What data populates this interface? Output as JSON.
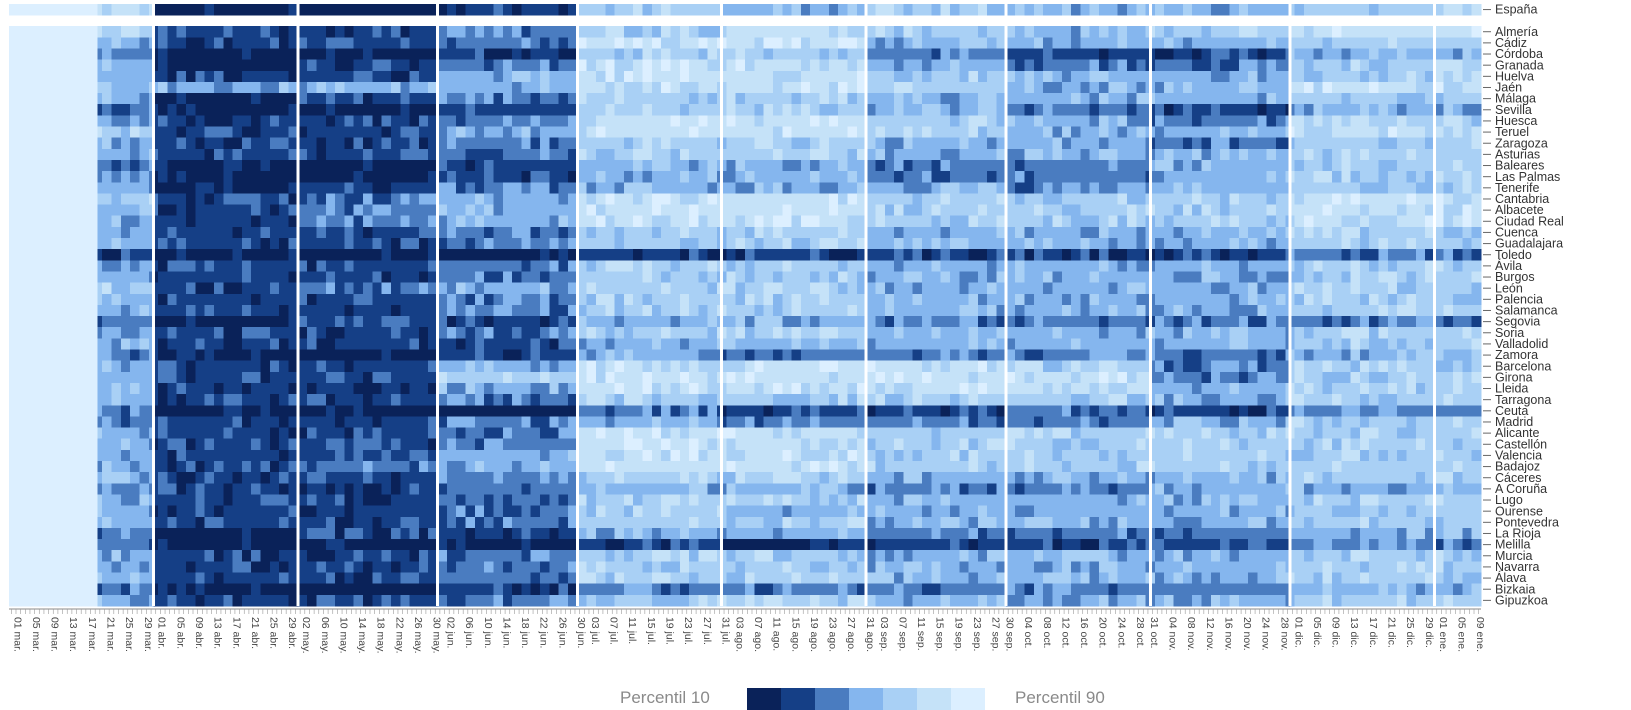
{
  "chart_data": {
    "type": "heatmap",
    "title": "",
    "row_labels": [
      "España",
      "Almería",
      "Cádiz",
      "Córdoba",
      "Granada",
      "Huelva",
      "Jaén",
      "Málaga",
      "Sevilla",
      "Huesca",
      "Teruel",
      "Zaragoza",
      "Asturias",
      "Baleares",
      "Las Palmas",
      "Tenerife",
      "Cantabria",
      "Albacete",
      "Ciudad Real",
      "Cuenca",
      "Guadalajara",
      "Toledo",
      "Ávila",
      "Burgos",
      "León",
      "Palencia",
      "Salamanca",
      "Segovia",
      "Soria",
      "Valladolid",
      "Zamora",
      "Barcelona",
      "Girona",
      "Lleida",
      "Tarragona",
      "Ceuta",
      "Madrid",
      "Alicante",
      "Castellón",
      "Valencia",
      "Badajoz",
      "Cáceres",
      "A Coruña",
      "Lugo",
      "Ourense",
      "Pontevedra",
      "La Rioja",
      "Melilla",
      "Murcia",
      "Navarra",
      "Álava",
      "Bizkaia",
      "Gipuzkoa"
    ],
    "date_start": "2020-03-01",
    "date_end": "2021-01-10",
    "x_tick_labels": [
      "01 mar.",
      "05 mar.",
      "09 mar.",
      "13 mar.",
      "17 mar.",
      "21 mar.",
      "25 mar.",
      "29 mar.",
      "01 abr.",
      "05 abr.",
      "09 abr.",
      "13 abr.",
      "17 abr.",
      "21 abr.",
      "25 abr.",
      "29 abr.",
      "02 may.",
      "06 may.",
      "10 may.",
      "14 may.",
      "18 may.",
      "22 may.",
      "26 may.",
      "30 may.",
      "02 jun.",
      "06 jun.",
      "10 jun.",
      "14 jun.",
      "18 jun.",
      "22 jun.",
      "26 jun.",
      "30 jun.",
      "03 jul.",
      "07 jul.",
      "11 jul.",
      "15 jul.",
      "19 jul.",
      "23 jul.",
      "27 jul.",
      "31 jul.",
      "03 ago.",
      "07 ago.",
      "11 ago.",
      "15 ago.",
      "19 ago.",
      "23 ago.",
      "27 ago.",
      "31 ago.",
      "03 sep.",
      "07 sep.",
      "11 sep.",
      "15 sep.",
      "19 sep.",
      "23 sep.",
      "27 sep.",
      "30 sep.",
      "04 oct.",
      "08 oct.",
      "12 oct.",
      "16 oct.",
      "20 oct.",
      "24 oct.",
      "28 oct.",
      "31 oct.",
      "04 nov.",
      "08 nov.",
      "12 nov.",
      "16 nov.",
      "20 nov.",
      "24 nov.",
      "28 nov.",
      "01 dic.",
      "05 dic.",
      "09 dic.",
      "13 dic.",
      "17 dic.",
      "21 dic.",
      "25 dic.",
      "29 dic.",
      "01 ene.",
      "05 ene.",
      "09 ene."
    ],
    "month_breaks": [
      "01 abr.",
      "02 may.",
      "01 jun.",
      "01 jul.",
      "01 ago.",
      "01 sep.",
      "01 oct.",
      "01 nov.",
      "01 dic.",
      "01 ene."
    ],
    "color_scale": [
      "#0a2259",
      "#153f86",
      "#4a7cc0",
      "#85b6ee",
      "#a9d0f5",
      "#c5e2f8",
      "#dcefff"
    ],
    "legend": {
      "low_label": "Percentil 10",
      "high_label": "Percentil 90",
      "position": "bottom-center"
    },
    "period_levels_note_key": "levels are percentile class indices 0 (darkest, Percentil 10) to 6 (lightest, Percentil 90)",
    "rows": [
      {
        "name": "España",
        "periods": [
          6,
          5,
          0,
          0,
          1,
          4,
          3,
          4,
          3,
          3,
          4
        ]
      },
      {
        "name": "Almería",
        "periods": [
          6,
          4,
          1,
          1,
          2,
          4,
          5,
          4,
          3,
          4,
          5
        ]
      },
      {
        "name": "Cádiz",
        "periods": [
          6,
          3,
          1,
          1,
          2,
          5,
          5,
          3,
          3,
          3,
          4
        ]
      },
      {
        "name": "Córdoba",
        "periods": [
          6,
          2,
          0,
          0,
          1,
          4,
          4,
          2,
          1,
          1,
          3
        ]
      },
      {
        "name": "Granada",
        "periods": [
          6,
          3,
          0,
          1,
          2,
          5,
          5,
          3,
          2,
          2,
          4
        ]
      },
      {
        "name": "Huelva",
        "periods": [
          6,
          3,
          1,
          1,
          3,
          5,
          5,
          4,
          3,
          3,
          4
        ]
      },
      {
        "name": "Jaén",
        "periods": [
          6,
          4,
          3,
          3,
          3,
          5,
          5,
          4,
          3,
          3,
          5
        ]
      },
      {
        "name": "Málaga",
        "periods": [
          6,
          3,
          0,
          1,
          2,
          4,
          4,
          3,
          3,
          3,
          4
        ]
      },
      {
        "name": "Sevilla",
        "periods": [
          6,
          2,
          0,
          0,
          1,
          4,
          4,
          3,
          2,
          1,
          3
        ]
      },
      {
        "name": "Huesca",
        "periods": [
          6,
          3,
          1,
          1,
          2,
          5,
          5,
          4,
          3,
          2,
          4
        ]
      },
      {
        "name": "Teruel",
        "periods": [
          6,
          4,
          1,
          1,
          3,
          5,
          5,
          4,
          3,
          3,
          5
        ]
      },
      {
        "name": "Zaragoza",
        "periods": [
          6,
          3,
          1,
          1,
          2,
          4,
          4,
          3,
          3,
          2,
          4
        ]
      },
      {
        "name": "Asturias",
        "periods": [
          6,
          3,
          1,
          1,
          2,
          4,
          4,
          3,
          3,
          3,
          4
        ]
      },
      {
        "name": "Baleares",
        "periods": [
          6,
          2,
          0,
          0,
          1,
          3,
          3,
          2,
          2,
          3,
          4
        ]
      },
      {
        "name": "Las Palmas",
        "periods": [
          6,
          2,
          0,
          0,
          1,
          3,
          3,
          2,
          2,
          3,
          4
        ]
      },
      {
        "name": "Tenerife",
        "periods": [
          6,
          3,
          0,
          1,
          2,
          3,
          3,
          3,
          2,
          3,
          4
        ]
      },
      {
        "name": "Cantabria",
        "periods": [
          6,
          4,
          1,
          2,
          3,
          5,
          5,
          4,
          4,
          4,
          5
        ]
      },
      {
        "name": "Albacete",
        "periods": [
          6,
          3,
          1,
          2,
          3,
          5,
          5,
          4,
          4,
          4,
          5
        ]
      },
      {
        "name": "Ciudad Real",
        "periods": [
          6,
          3,
          1,
          2,
          3,
          5,
          5,
          4,
          4,
          4,
          5
        ]
      },
      {
        "name": "Cuenca",
        "periods": [
          6,
          3,
          1,
          1,
          2,
          4,
          4,
          3,
          3,
          3,
          4
        ]
      },
      {
        "name": "Guadalajara",
        "periods": [
          6,
          3,
          1,
          1,
          2,
          4,
          4,
          3,
          3,
          3,
          4
        ]
      },
      {
        "name": "Toledo",
        "periods": [
          6,
          1,
          0,
          0,
          0,
          1,
          1,
          1,
          1,
          1,
          2
        ]
      },
      {
        "name": "Ávila",
        "periods": [
          6,
          3,
          1,
          1,
          2,
          4,
          4,
          3,
          3,
          3,
          4
        ]
      },
      {
        "name": "Burgos",
        "periods": [
          6,
          3,
          1,
          1,
          2,
          4,
          4,
          3,
          3,
          3,
          4
        ]
      },
      {
        "name": "León",
        "periods": [
          6,
          4,
          1,
          2,
          3,
          4,
          4,
          3,
          3,
          3,
          4
        ]
      },
      {
        "name": "Palencia",
        "periods": [
          6,
          3,
          1,
          1,
          2,
          4,
          4,
          3,
          3,
          3,
          4
        ]
      },
      {
        "name": "Salamanca",
        "periods": [
          6,
          3,
          1,
          1,
          2,
          4,
          4,
          3,
          3,
          3,
          4
        ]
      },
      {
        "name": "Segovia",
        "periods": [
          6,
          2,
          0,
          1,
          1,
          3,
          3,
          2,
          2,
          2,
          2
        ]
      },
      {
        "name": "Soria",
        "periods": [
          6,
          3,
          1,
          1,
          2,
          4,
          4,
          3,
          3,
          3,
          4
        ]
      },
      {
        "name": "Valladolid",
        "periods": [
          6,
          3,
          1,
          1,
          1,
          3,
          3,
          3,
          3,
          3,
          4
        ]
      },
      {
        "name": "Zamora",
        "periods": [
          6,
          2,
          0,
          0,
          1,
          3,
          2,
          2,
          2,
          2,
          3
        ]
      },
      {
        "name": "Barcelona",
        "periods": [
          6,
          3,
          1,
          1,
          3,
          5,
          5,
          5,
          4,
          2,
          4
        ]
      },
      {
        "name": "Girona",
        "periods": [
          6,
          3,
          1,
          1,
          4,
          5,
          5,
          5,
          5,
          2,
          4
        ]
      },
      {
        "name": "Lleida",
        "periods": [
          6,
          3,
          1,
          1,
          3,
          5,
          5,
          5,
          5,
          3,
          4
        ]
      },
      {
        "name": "Tarragona",
        "periods": [
          6,
          3,
          1,
          1,
          2,
          4,
          4,
          4,
          4,
          3,
          4
        ]
      },
      {
        "name": "Ceuta",
        "periods": [
          6,
          2,
          0,
          0,
          0,
          2,
          1,
          1,
          2,
          1,
          2
        ]
      },
      {
        "name": "Madrid",
        "periods": [
          6,
          2,
          1,
          1,
          2,
          3,
          2,
          2,
          2,
          3,
          4
        ]
      },
      {
        "name": "Alicante",
        "periods": [
          6,
          3,
          1,
          1,
          2,
          5,
          5,
          4,
          4,
          4,
          4
        ]
      },
      {
        "name": "Castellón",
        "periods": [
          6,
          3,
          1,
          1,
          2,
          5,
          5,
          4,
          4,
          4,
          4
        ]
      },
      {
        "name": "Valencia",
        "periods": [
          6,
          3,
          1,
          1,
          3,
          5,
          5,
          4,
          4,
          4,
          4
        ]
      },
      {
        "name": "Badajoz",
        "periods": [
          6,
          3,
          1,
          2,
          3,
          5,
          5,
          4,
          4,
          4,
          4
        ]
      },
      {
        "name": "Cáceres",
        "periods": [
          6,
          3,
          1,
          1,
          2,
          4,
          4,
          3,
          3,
          3,
          4
        ]
      },
      {
        "name": "A Coruña",
        "periods": [
          6,
          2,
          1,
          1,
          2,
          3,
          3,
          2,
          2,
          3,
          3
        ]
      },
      {
        "name": "Lugo",
        "periods": [
          6,
          3,
          1,
          1,
          2,
          4,
          4,
          3,
          3,
          3,
          4
        ]
      },
      {
        "name": "Ourense",
        "periods": [
          6,
          3,
          1,
          1,
          2,
          4,
          3,
          3,
          3,
          3,
          4
        ]
      },
      {
        "name": "Pontevedra",
        "periods": [
          6,
          3,
          1,
          1,
          2,
          4,
          4,
          3,
          3,
          3,
          4
        ]
      },
      {
        "name": "La Rioja",
        "periods": [
          6,
          2,
          0,
          1,
          1,
          3,
          3,
          2,
          2,
          2,
          3
        ]
      },
      {
        "name": "Melilla",
        "periods": [
          6,
          2,
          0,
          0,
          0,
          1,
          0,
          1,
          1,
          1,
          2
        ]
      },
      {
        "name": "Murcia",
        "periods": [
          6,
          3,
          1,
          1,
          2,
          4,
          4,
          3,
          3,
          3,
          4
        ]
      },
      {
        "name": "Navarra",
        "periods": [
          6,
          3,
          1,
          1,
          2,
          4,
          4,
          3,
          3,
          3,
          4
        ]
      },
      {
        "name": "Álava",
        "periods": [
          6,
          3,
          1,
          1,
          2,
          4,
          4,
          3,
          3,
          3,
          4
        ]
      },
      {
        "name": "Bizkaia",
        "periods": [
          6,
          2,
          0,
          0,
          1,
          2,
          2,
          2,
          2,
          2,
          3
        ]
      },
      {
        "name": "Gipuzkoa",
        "periods": [
          6,
          3,
          1,
          1,
          2,
          4,
          4,
          3,
          3,
          3,
          4
        ]
      }
    ]
  }
}
